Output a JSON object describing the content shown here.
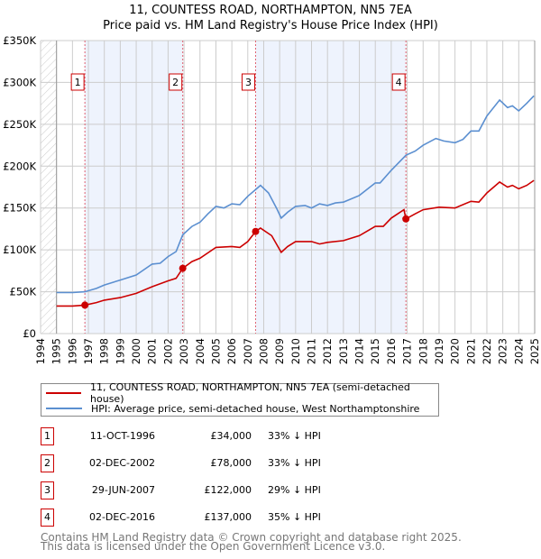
{
  "chart_data": {
    "type": "line",
    "title": "11, COUNTESS ROAD, NORTHAMPTON, NN5 7EA",
    "subtitle": "Price paid vs. HM Land Registry's House Price Index (HPI)",
    "xlim": [
      1994,
      2025
    ],
    "ylim": [
      0,
      350000
    ],
    "x_ticks": [
      "1994",
      "1995",
      "1996",
      "1997",
      "1998",
      "1999",
      "2000",
      "2001",
      "2002",
      "2003",
      "2004",
      "2005",
      "2006",
      "2007",
      "2008",
      "2009",
      "2010",
      "2011",
      "2012",
      "2013",
      "2014",
      "2015",
      "2016",
      "2017",
      "2018",
      "2019",
      "2020",
      "2021",
      "2022",
      "2023",
      "2024",
      "2025"
    ],
    "y_ticks": [
      {
        "v": 0,
        "label": "£0"
      },
      {
        "v": 50000,
        "label": "£50K"
      },
      {
        "v": 100000,
        "label": "£100K"
      },
      {
        "v": 150000,
        "label": "£150K"
      },
      {
        "v": 200000,
        "label": "£200K"
      },
      {
        "v": 250000,
        "label": "£250K"
      },
      {
        "v": 300000,
        "label": "£300K"
      },
      {
        "v": 350000,
        "label": "£350K"
      }
    ],
    "grid": true,
    "series": [
      {
        "name": "11, COUNTESS ROAD, NORTHAMPTON, NN5 7EA (semi-detached house)",
        "color": "#cc0000",
        "x": [
          1995,
          1996,
          1996.78,
          1997.5,
          1998,
          1999,
          2000,
          2001,
          2002,
          2002.5,
          2002.92,
          2003.5,
          2004,
          2005,
          2006,
          2006.5,
          2007,
          2007.49,
          2007.8,
          2008.5,
          2009.1,
          2009.5,
          2010,
          2011,
          2011.5,
          2012,
          2013,
          2014,
          2015,
          2015.5,
          2016,
          2016.8,
          2016.92,
          2017.5,
          2018,
          2019,
          2020,
          2021,
          2021.5,
          2022,
          2022.8,
          2023.3,
          2023.6,
          2024,
          2024.5,
          2024.95
        ],
        "y": [
          33000,
          33000,
          34000,
          37000,
          40000,
          43000,
          48000,
          56000,
          63000,
          66000,
          78000,
          86000,
          90000,
          103000,
          104000,
          103000,
          110000,
          122000,
          126000,
          117000,
          97000,
          104000,
          110000,
          110000,
          107000,
          109000,
          111000,
          117000,
          128000,
          128000,
          138000,
          148000,
          137000,
          143000,
          148000,
          151000,
          150000,
          158000,
          157000,
          168000,
          181000,
          175000,
          177000,
          173000,
          177000,
          183000
        ]
      },
      {
        "name": "HPI: Average price, semi-detached house, West Northamptonshire",
        "color": "#5b8fd0",
        "x": [
          1995,
          1996,
          1996.78,
          1997.5,
          1998,
          1999,
          2000,
          2001,
          2001.5,
          2002,
          2002.5,
          2002.92,
          2003.5,
          2004,
          2004.5,
          2005,
          2005.5,
          2006,
          2006.5,
          2007,
          2007.8,
          2008.3,
          2008.8,
          2009.1,
          2009.5,
          2010,
          2010.6,
          2011,
          2011.5,
          2012,
          2012.5,
          2013,
          2014,
          2015,
          2015.3,
          2016,
          2016.92,
          2017.5,
          2018,
          2018.8,
          2019.3,
          2020,
          2020.5,
          2021,
          2021.5,
          2022,
          2022.8,
          2023.3,
          2023.6,
          2024,
          2024.5,
          2024.95
        ],
        "y": [
          49000,
          49000,
          50000,
          54000,
          58000,
          64000,
          70000,
          83000,
          84000,
          92000,
          98000,
          118000,
          128000,
          133000,
          143000,
          152000,
          150000,
          155000,
          154000,
          164000,
          177000,
          168000,
          150000,
          138000,
          145000,
          152000,
          153000,
          150000,
          155000,
          153000,
          156000,
          157000,
          165000,
          180000,
          180000,
          195000,
          213000,
          218000,
          225000,
          233000,
          230000,
          228000,
          232000,
          242000,
          242000,
          260000,
          279000,
          270000,
          272000,
          266000,
          275000,
          284000
        ]
      }
    ],
    "sales": [
      {
        "n": "1",
        "x": 1996.78,
        "y": 34000,
        "date": "11-OCT-1996",
        "price": "£34,000",
        "pct": "33% ↓ HPI"
      },
      {
        "n": "2",
        "x": 2002.92,
        "y": 78000,
        "date": "02-DEC-2002",
        "price": "£78,000",
        "pct": "33% ↓ HPI"
      },
      {
        "n": "3",
        "x": 2007.49,
        "y": 122000,
        "date": "29-JUN-2007",
        "price": "£122,000",
        "pct": "29% ↓ HPI"
      },
      {
        "n": "4",
        "x": 2016.92,
        "y": 137000,
        "date": "02-DEC-2016",
        "price": "£137,000",
        "pct": "35% ↓ HPI"
      }
    ]
  },
  "footer": {
    "line1": "Contains HM Land Registry data © Crown copyright and database right 2025.",
    "line2": "This data is licensed under the Open Government Licence v3.0."
  }
}
